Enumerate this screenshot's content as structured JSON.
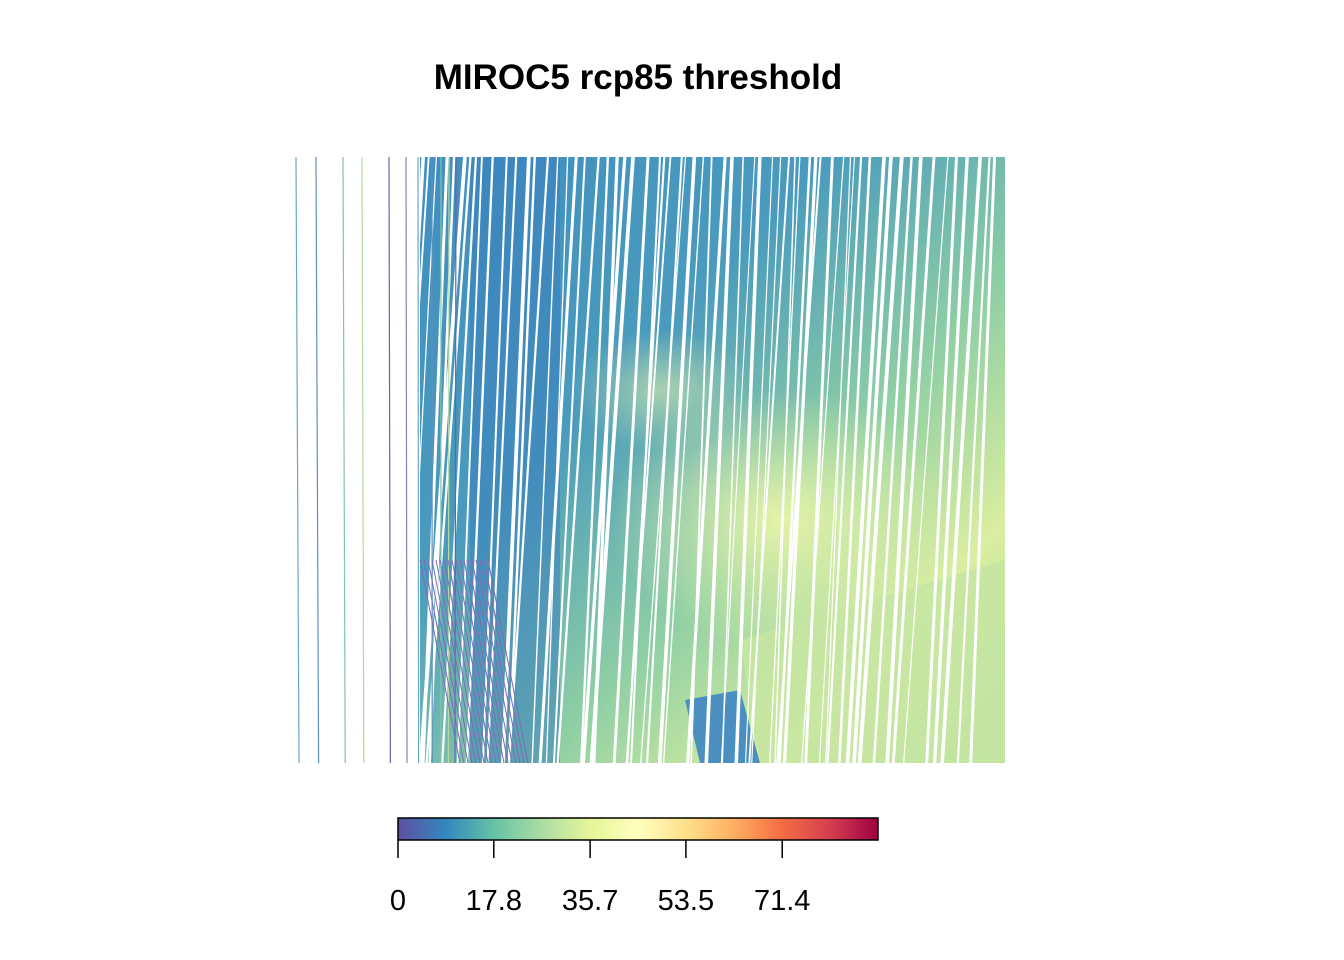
{
  "chart_data": {
    "type": "heatmap",
    "title": "MIROC5 rcp85 threshold",
    "xlabel": "",
    "ylabel": "",
    "legend": {
      "position": "bottom",
      "range": [
        0,
        89.2
      ],
      "ticks": [
        "0",
        "17.8",
        "35.7",
        "53.5",
        "71.4"
      ],
      "tick_values": [
        0,
        17.8,
        35.7,
        53.5,
        71.4
      ],
      "palette": [
        "#5e4fa2",
        "#3288bd",
        "#66c2a5",
        "#abdda4",
        "#e6f598",
        "#ffffbf",
        "#fee08b",
        "#fdae61",
        "#f46d43",
        "#d53e4f",
        "#9e0142"
      ]
    },
    "field_description_colors": {
      "low": "#3288bd",
      "mid": "#66c2a5",
      "high": "#e6f598"
    }
  }
}
